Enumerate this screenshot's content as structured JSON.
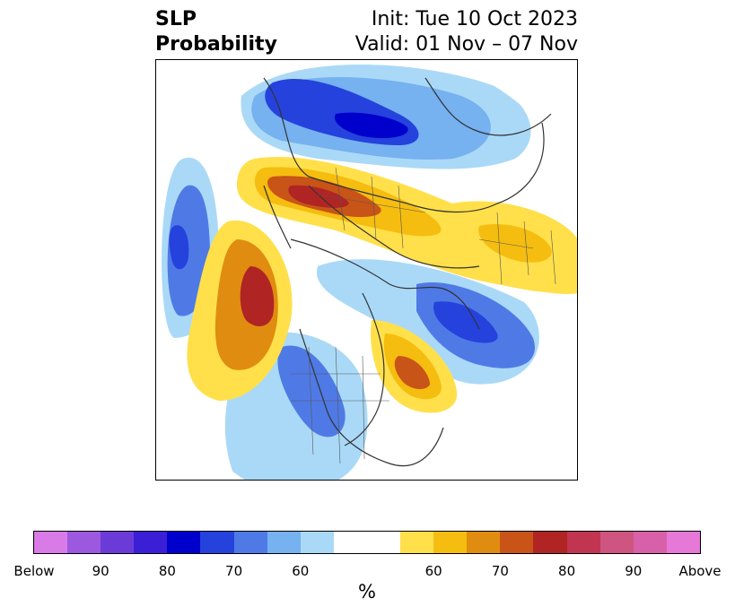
{
  "title": {
    "left_line1": "SLP",
    "left_line2": "Probability",
    "init": "Init: Tue 10 Oct 2023",
    "valid": "Valid: 01 Nov – 07 Nov"
  },
  "colorbar": {
    "unit": "%",
    "colors": [
      "#d97be6",
      "#9c59e0",
      "#6b3bd8",
      "#3a1fd6",
      "#0000cc",
      "#2542dd",
      "#4f7ae6",
      "#76b1f0",
      "#aad9f7",
      "#ffffff",
      "#ffffff",
      "#ffe04a",
      "#f5bd0f",
      "#e08c10",
      "#c85418",
      "#b02424",
      "#c23550",
      "#cd5580",
      "#d860a8",
      "#e678d8"
    ],
    "tick_labels": [
      {
        "text": "Below",
        "cell": 0
      },
      {
        "text": "90",
        "cell": 2
      },
      {
        "text": "80",
        "cell": 4
      },
      {
        "text": "70",
        "cell": 6
      },
      {
        "text": "60",
        "cell": 8
      },
      {
        "text": "60",
        "cell": 12
      },
      {
        "text": "70",
        "cell": 14
      },
      {
        "text": "80",
        "cell": 16
      },
      {
        "text": "90",
        "cell": 18
      },
      {
        "text": "Above",
        "cell": 20
      }
    ]
  },
  "map": {
    "projection": "north polar stereographic",
    "anomalies": [
      {
        "name": "below-center-northwest",
        "sign": "below",
        "max_level": 80
      },
      {
        "name": "below-pacific-west",
        "sign": "below",
        "max_level": 80
      },
      {
        "name": "below-north-central",
        "sign": "below",
        "max_level": 70
      },
      {
        "name": "below-east-canada",
        "sign": "below",
        "max_level": 70
      },
      {
        "name": "below-western-us",
        "sign": "below",
        "max_level": 80
      },
      {
        "name": "above-northern-asia",
        "sign": "above",
        "max_level": 80
      },
      {
        "name": "above-north-pacific",
        "sign": "above",
        "max_level": 80
      },
      {
        "name": "above-northeast-america",
        "sign": "above",
        "max_level": 70
      },
      {
        "name": "above-europe",
        "sign": "above",
        "max_level": 60
      }
    ]
  }
}
